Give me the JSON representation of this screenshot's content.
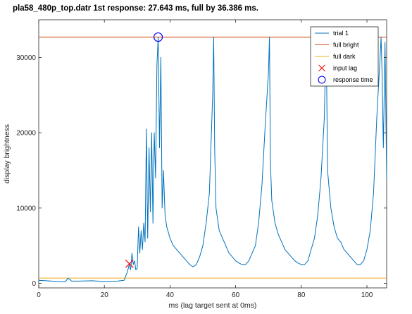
{
  "chart_data": {
    "type": "line",
    "title": "pla58_480p_top.datr 1st response:  27.643 ms, full by  36.386 ms.",
    "xlabel": "ms (lag target sent at 0ms)",
    "ylabel": "display brightness",
    "xlim": [
      0,
      106
    ],
    "ylim": [
      -600,
      35000
    ],
    "xticks": [
      0,
      20,
      40,
      60,
      80,
      100
    ],
    "yticks": [
      0,
      10000,
      20000,
      30000
    ],
    "xtick_labels": [
      "0",
      "20",
      "40",
      "60",
      "80",
      "100"
    ],
    "ytick_labels": [
      "0",
      "10000",
      "20000",
      "30000"
    ],
    "grid": false,
    "legend_position": "top-right",
    "colors": {
      "trial": "#0072BD",
      "full_bright": "#D95319",
      "full_dark": "#EDB120",
      "input_lag": "#FF0000",
      "response_time": "#0000FF"
    },
    "series": [
      {
        "name": "trial 1",
        "x": [
          0,
          4,
          8,
          9,
          10,
          12,
          16,
          20,
          24,
          26,
          27,
          27.6,
          28,
          28.4,
          28.8,
          29.2,
          29.6,
          30,
          30.4,
          30.8,
          31.2,
          31.6,
          32,
          32.4,
          32.8,
          33.2,
          33.6,
          34,
          34.4,
          34.8,
          35.2,
          35.6,
          36,
          36.4,
          36.8,
          37.2,
          37.6,
          38,
          38.5,
          39,
          40,
          41,
          42,
          43,
          44,
          45,
          46,
          47,
          48,
          49,
          50,
          51,
          52,
          53,
          53.3,
          53.6,
          54,
          55,
          56,
          57,
          58,
          59,
          60,
          61,
          62,
          63,
          64,
          65,
          66,
          67,
          68,
          69,
          70,
          70.3,
          70.6,
          71,
          72,
          73,
          74,
          75,
          76,
          77,
          78,
          79,
          80,
          81,
          82,
          83,
          84,
          85,
          86,
          87,
          87.3,
          87.6,
          88,
          89,
          90,
          91,
          92,
          93,
          94,
          95,
          96,
          97,
          98,
          99,
          100,
          101,
          102,
          103,
          104,
          104.3,
          104.6,
          105,
          105.5,
          106
        ],
        "y": [
          400,
          300,
          200,
          700,
          300,
          300,
          350,
          250,
          300,
          400,
          1500,
          2500,
          1800,
          4000,
          2500,
          3000,
          1800,
          2000,
          7500,
          4000,
          7000,
          4500,
          8000,
          5500,
          20500,
          6000,
          18000,
          9500,
          20000,
          8000,
          20000,
          14000,
          29000,
          32700,
          18000,
          30000,
          10000,
          15000,
          9000,
          7500,
          6000,
          5000,
          4500,
          4000,
          3500,
          3000,
          2500,
          2200,
          2500,
          3500,
          5000,
          8000,
          12000,
          25000,
          32700,
          18000,
          10000,
          7000,
          6000,
          5000,
          4000,
          3500,
          3000,
          2700,
          2500,
          2500,
          3000,
          4000,
          5000,
          8000,
          13000,
          21000,
          28000,
          32700,
          16000,
          11000,
          8000,
          6500,
          5500,
          4500,
          4000,
          3500,
          3000,
          2700,
          2500,
          2500,
          3000,
          4500,
          6000,
          9000,
          14000,
          22000,
          28000,
          32700,
          15000,
          10000,
          7500,
          6000,
          5500,
          4500,
          4000,
          3500,
          3000,
          2500,
          2500,
          3000,
          4500,
          7000,
          12000,
          22000,
          30000,
          32700,
          28000,
          18000,
          32000,
          14000
        ]
      },
      {
        "name": "full bright",
        "value": 32700
      },
      {
        "name": "full dark",
        "value": 700
      },
      {
        "name": "input lag",
        "x": 27.643,
        "y": 2600
      },
      {
        "name": "response time",
        "x": 36.386,
        "y": 32700
      }
    ]
  }
}
